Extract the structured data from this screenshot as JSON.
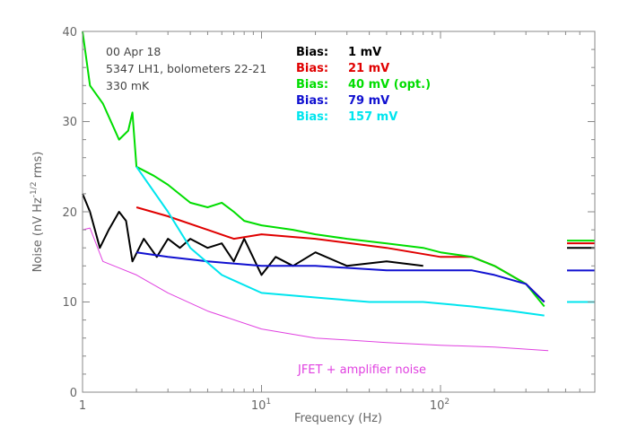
{
  "chart_data": {
    "type": "line",
    "xlabel": "Frequency (Hz)",
    "ylabel": "Noise (nV Hz",
    "ylabel_sup": "-1/2",
    "ylabel_end": " rms)",
    "xscale": "log",
    "xlim": [
      1,
      600
    ],
    "ylim": [
      0,
      40
    ],
    "y_ticks": [
      "0",
      "10",
      "20",
      "30",
      "40"
    ],
    "x_ticks": [
      "1",
      "10",
      "10"
    ],
    "x_tick_sups": [
      "",
      "1",
      "2"
    ],
    "info_lines": [
      "00 Apr 18",
      "5347 LH1, bolometers 22-21",
      "330 mK"
    ],
    "annotation": "JFET + amplifier noise",
    "legend_prefix": "Bias:",
    "series": [
      {
        "name": "1 mV",
        "color": "#000000",
        "points": [
          [
            1,
            22
          ],
          [
            1.1,
            20
          ],
          [
            1.25,
            16
          ],
          [
            1.4,
            18
          ],
          [
            1.6,
            20
          ],
          [
            1.75,
            19
          ],
          [
            1.9,
            14.5
          ],
          [
            2.2,
            17
          ],
          [
            2.6,
            15
          ],
          [
            3,
            17
          ],
          [
            3.5,
            16
          ],
          [
            4,
            17
          ],
          [
            5,
            16
          ],
          [
            6,
            16.5
          ],
          [
            7,
            14.5
          ],
          [
            8,
            17
          ],
          [
            10,
            13
          ],
          [
            12,
            15
          ],
          [
            15,
            14
          ],
          [
            20,
            15.5
          ],
          [
            30,
            14
          ],
          [
            50,
            14.5
          ],
          [
            80,
            14
          ]
        ],
        "end_marker": 16
      },
      {
        "name": "21 mV",
        "color": "#e00000",
        "points": [
          [
            2,
            20.5
          ],
          [
            3,
            19.5
          ],
          [
            5,
            18
          ],
          [
            7,
            17
          ],
          [
            10,
            17.5
          ],
          [
            20,
            17
          ],
          [
            50,
            16
          ],
          [
            100,
            15
          ],
          [
            150,
            15
          ],
          [
            200,
            14
          ],
          [
            300,
            12
          ],
          [
            380,
            10
          ]
        ],
        "end_marker": 16.5
      },
      {
        "name": "40 mV (opt.)",
        "color": "#00dd00",
        "points": [
          [
            1,
            40
          ],
          [
            1.1,
            34
          ],
          [
            1.3,
            32
          ],
          [
            1.6,
            28
          ],
          [
            1.8,
            29
          ],
          [
            1.9,
            31
          ],
          [
            2,
            25
          ],
          [
            2.5,
            24
          ],
          [
            3,
            23
          ],
          [
            4,
            21
          ],
          [
            5,
            20.5
          ],
          [
            6,
            21
          ],
          [
            7,
            20
          ],
          [
            8,
            19
          ],
          [
            10,
            18.5
          ],
          [
            15,
            18
          ],
          [
            20,
            17.5
          ],
          [
            30,
            17
          ],
          [
            50,
            16.5
          ],
          [
            80,
            16
          ],
          [
            100,
            15.5
          ],
          [
            150,
            15
          ],
          [
            200,
            14
          ],
          [
            300,
            12
          ],
          [
            380,
            9.5
          ]
        ],
        "end_marker": 16.8
      },
      {
        "name": "79 mV",
        "color": "#1010d0",
        "points": [
          [
            2,
            15.5
          ],
          [
            3,
            15
          ],
          [
            5,
            14.5
          ],
          [
            10,
            14
          ],
          [
            20,
            14
          ],
          [
            50,
            13.5
          ],
          [
            100,
            13.5
          ],
          [
            150,
            13.5
          ],
          [
            200,
            13
          ],
          [
            300,
            12
          ],
          [
            380,
            10
          ]
        ],
        "end_marker": 13.5
      },
      {
        "name": "157 mV",
        "color": "#00e5ee",
        "points": [
          [
            2,
            25
          ],
          [
            3,
            20
          ],
          [
            4,
            16
          ],
          [
            6,
            13
          ],
          [
            10,
            11
          ],
          [
            20,
            10.5
          ],
          [
            40,
            10
          ],
          [
            80,
            10
          ],
          [
            150,
            9.5
          ],
          [
            250,
            9
          ],
          [
            380,
            8.5
          ]
        ],
        "end_marker": 10
      },
      {
        "name": "JFET + amplifier noise",
        "color": "#e040e0",
        "points": [
          [
            1,
            18
          ],
          [
            1.1,
            18.2
          ],
          [
            1.3,
            14.5
          ],
          [
            1.5,
            14
          ],
          [
            2,
            13
          ],
          [
            3,
            11
          ],
          [
            5,
            9
          ],
          [
            10,
            7
          ],
          [
            20,
            6
          ],
          [
            50,
            5.5
          ],
          [
            100,
            5.2
          ],
          [
            200,
            5
          ],
          [
            400,
            4.6
          ]
        ],
        "end_marker": null
      }
    ]
  }
}
